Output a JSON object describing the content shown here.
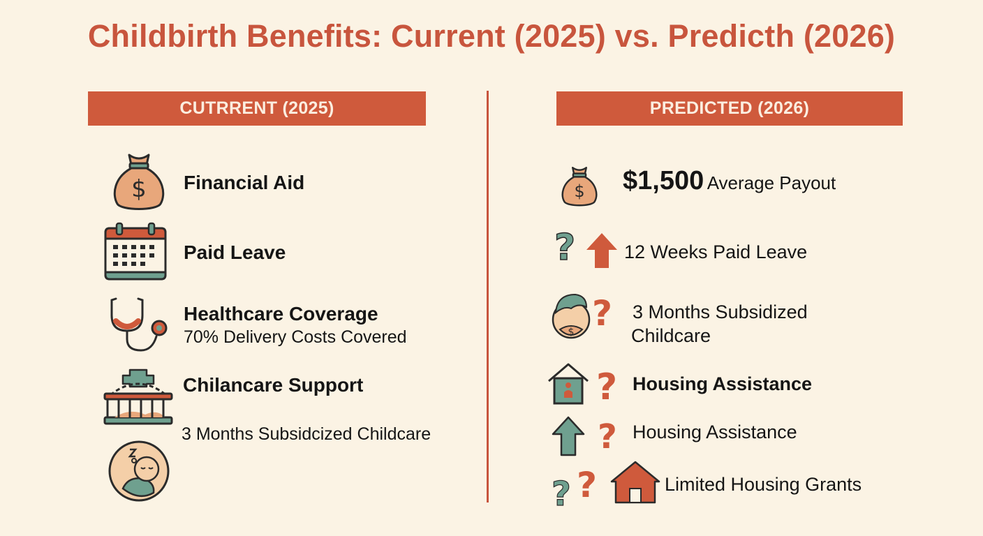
{
  "title": "Childbirth Benefits: Current (2025) vs. Predicth (2026)",
  "colors": {
    "accent": "#c8553d",
    "banner": "#cf5a3c",
    "background": "#fbf3e4",
    "teal": "#6fa08f",
    "peach": "#e8a77b"
  },
  "current": {
    "header": "CUTRRENT (2025)",
    "items": [
      {
        "icon": "money-bag-icon",
        "label": "Financial Aid"
      },
      {
        "icon": "calendar-icon",
        "label": "Paid Leave"
      },
      {
        "icon": "stethoscope-icon",
        "label": "Healthcare Coverage",
        "sub": "70% Delivery Costs Covered"
      },
      {
        "icon": "crib-icon",
        "label": "Chilancare Support",
        "sub": "3 Months Subsidcized Childcare"
      },
      {
        "icon": "sleeping-baby-icon"
      }
    ]
  },
  "predicted": {
    "header": "PREDICTED (2026)",
    "items": [
      {
        "icon": "money-bag-icon",
        "amount": "$1,500",
        "text": "Average Payout"
      },
      {
        "icon": "up-arrow-icon",
        "text": "12 Weeks Paid Leave"
      },
      {
        "icon": "baby-icon",
        "text": "3 Months Subsidized Childcare"
      },
      {
        "icon": "house-icon",
        "text": "Housing Assistance"
      },
      {
        "icon": "up-arrow-icon",
        "text": "Housing Assistance"
      },
      {
        "icon": "house-icon",
        "text": "Limited Housing Grants"
      }
    ]
  }
}
